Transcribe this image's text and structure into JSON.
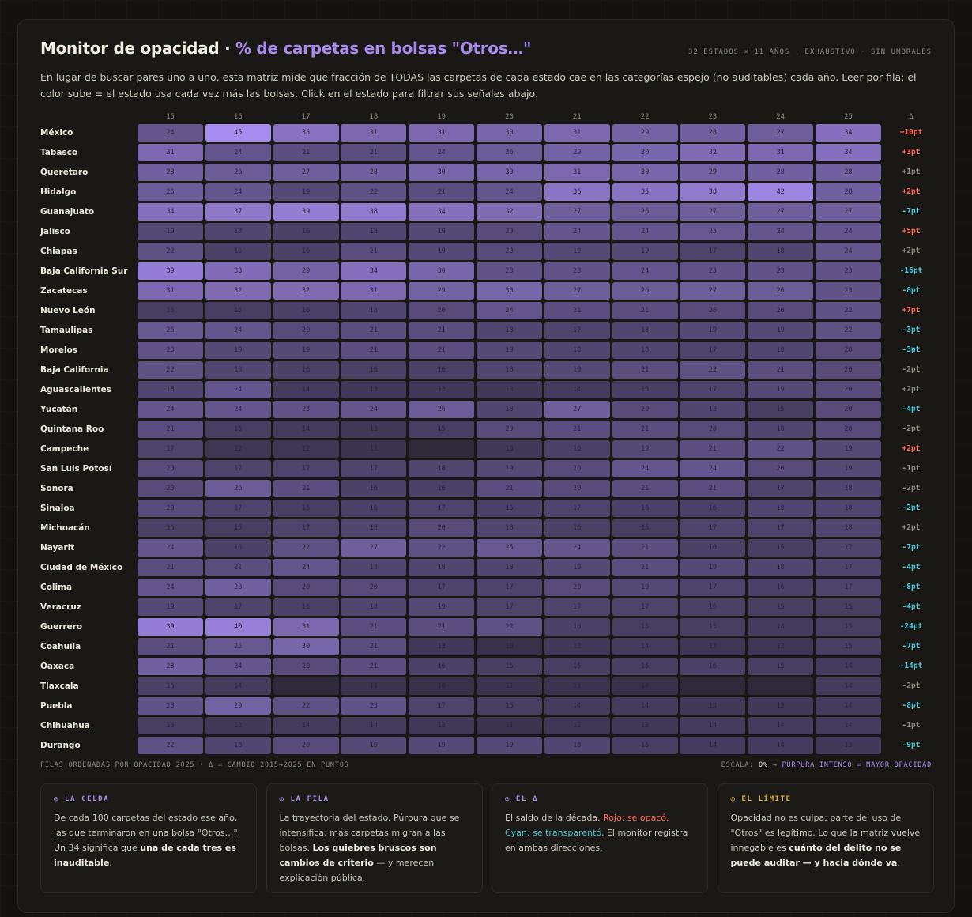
{
  "header": {
    "title_main": "Monitor de opacidad · ",
    "title_accent": "% de carpetas en bolsas \"Otros…\"",
    "meta": "32 ESTADOS × 11 AÑOS · EXHAUSTIVO · SIN UMBRALES",
    "intro": "En lugar de buscar pares uno a uno, esta matriz mide qué fracción de TODAS las carpetas de cada estado cae en las categorías espejo (no auditables) cada año. Leer por fila: el color sube = el estado usa cada vez más las bolsas. Click en el estado para filtrar sus señales abajo."
  },
  "years": [
    "15",
    "16",
    "17",
    "18",
    "19",
    "20",
    "21",
    "22",
    "23",
    "24",
    "25"
  ],
  "delta_label": "Δ",
  "colors": {
    "positive": "#ff6b5a",
    "negative": "#4ec9d8",
    "neutral": "#8f897d",
    "accent": "#a98bf0"
  },
  "rows": [
    {
      "state": "México",
      "values": [
        24,
        45,
        35,
        31,
        31,
        30,
        31,
        29,
        28,
        27,
        34
      ],
      "delta": "+10pt",
      "tone": "pos"
    },
    {
      "state": "Tabasco",
      "values": [
        31,
        24,
        21,
        21,
        24,
        26,
        29,
        30,
        32,
        31,
        34
      ],
      "delta": "+3pt",
      "tone": "pos"
    },
    {
      "state": "Querétaro",
      "values": [
        28,
        26,
        27,
        28,
        30,
        30,
        31,
        30,
        29,
        28,
        28
      ],
      "delta": "+1pt",
      "tone": "neu"
    },
    {
      "state": "Hidalgo",
      "values": [
        26,
        24,
        19,
        22,
        21,
        24,
        36,
        35,
        38,
        42,
        28
      ],
      "delta": "+2pt",
      "tone": "pos"
    },
    {
      "state": "Guanajuato",
      "values": [
        34,
        37,
        39,
        38,
        34,
        32,
        27,
        26,
        27,
        27,
        27
      ],
      "delta": "-7pt",
      "tone": "neg"
    },
    {
      "state": "Jalisco",
      "values": [
        19,
        18,
        16,
        18,
        19,
        20,
        24,
        24,
        25,
        24,
        24
      ],
      "delta": "+5pt",
      "tone": "pos"
    },
    {
      "state": "Chiapas",
      "values": [
        22,
        16,
        16,
        21,
        19,
        20,
        19,
        19,
        17,
        18,
        24
      ],
      "delta": "+2pt",
      "tone": "neu"
    },
    {
      "state": "Baja California Sur",
      "values": [
        39,
        33,
        29,
        34,
        30,
        23,
        23,
        24,
        23,
        23,
        23
      ],
      "delta": "-16pt",
      "tone": "neg"
    },
    {
      "state": "Zacatecas",
      "values": [
        31,
        32,
        32,
        31,
        29,
        30,
        27,
        26,
        27,
        26,
        23
      ],
      "delta": "-8pt",
      "tone": "neg"
    },
    {
      "state": "Nuevo León",
      "values": [
        15,
        15,
        16,
        18,
        20,
        24,
        21,
        21,
        20,
        20,
        22
      ],
      "delta": "+7pt",
      "tone": "pos"
    },
    {
      "state": "Tamaulipas",
      "values": [
        25,
        24,
        20,
        21,
        21,
        18,
        17,
        18,
        19,
        19,
        22
      ],
      "delta": "-3pt",
      "tone": "neg"
    },
    {
      "state": "Morelos",
      "values": [
        23,
        19,
        19,
        21,
        21,
        19,
        18,
        18,
        17,
        18,
        20
      ],
      "delta": "-3pt",
      "tone": "neg"
    },
    {
      "state": "Baja California",
      "values": [
        22,
        18,
        16,
        16,
        16,
        18,
        19,
        21,
        22,
        21,
        20
      ],
      "delta": "-2pt",
      "tone": "neu"
    },
    {
      "state": "Aguascalientes",
      "values": [
        18,
        24,
        14,
        13,
        13,
        13,
        14,
        15,
        17,
        19,
        20
      ],
      "delta": "+2pt",
      "tone": "neu"
    },
    {
      "state": "Yucatán",
      "values": [
        24,
        24,
        23,
        24,
        26,
        18,
        27,
        20,
        18,
        15,
        20
      ],
      "delta": "-4pt",
      "tone": "neg"
    },
    {
      "state": "Quintana Roo",
      "values": [
        21,
        15,
        14,
        13,
        15,
        20,
        21,
        21,
        20,
        18,
        20
      ],
      "delta": "-2pt",
      "tone": "neu"
    },
    {
      "state": "Campeche",
      "values": [
        17,
        12,
        12,
        11,
        null,
        13,
        16,
        19,
        21,
        22,
        19
      ],
      "delta": "+2pt",
      "tone": "pos"
    },
    {
      "state": "San Luis Potosí",
      "values": [
        20,
        17,
        17,
        17,
        18,
        19,
        20,
        24,
        24,
        20,
        19
      ],
      "delta": "-1pt",
      "tone": "neu"
    },
    {
      "state": "Sonora",
      "values": [
        20,
        26,
        21,
        16,
        16,
        21,
        20,
        21,
        21,
        17,
        18
      ],
      "delta": "-2pt",
      "tone": "neu"
    },
    {
      "state": "Sinaloa",
      "values": [
        20,
        17,
        15,
        16,
        17,
        16,
        17,
        16,
        16,
        18,
        18
      ],
      "delta": "-2pt",
      "tone": "neg"
    },
    {
      "state": "Michoacán",
      "values": [
        16,
        15,
        17,
        18,
        20,
        18,
        16,
        15,
        17,
        17,
        18
      ],
      "delta": "+2pt",
      "tone": "neu"
    },
    {
      "state": "Nayarit",
      "values": [
        24,
        16,
        22,
        27,
        22,
        25,
        24,
        21,
        16,
        15,
        17
      ],
      "delta": "-7pt",
      "tone": "neg"
    },
    {
      "state": "Ciudad de México",
      "values": [
        21,
        21,
        24,
        18,
        18,
        18,
        19,
        21,
        19,
        18,
        17
      ],
      "delta": "-4pt",
      "tone": "neg"
    },
    {
      "state": "Colima",
      "values": [
        24,
        28,
        20,
        20,
        17,
        17,
        20,
        19,
        17,
        16,
        17
      ],
      "delta": "-8pt",
      "tone": "neg"
    },
    {
      "state": "Veracruz",
      "values": [
        19,
        17,
        16,
        18,
        19,
        17,
        17,
        17,
        16,
        15,
        15
      ],
      "delta": "-4pt",
      "tone": "neg"
    },
    {
      "state": "Guerrero",
      "values": [
        39,
        40,
        31,
        21,
        21,
        22,
        16,
        15,
        15,
        14,
        15
      ],
      "delta": "-24pt",
      "tone": "neg"
    },
    {
      "state": "Coahuila",
      "values": [
        21,
        25,
        30,
        21,
        13,
        10,
        13,
        14,
        12,
        12,
        15
      ],
      "delta": "-7pt",
      "tone": "neg"
    },
    {
      "state": "Oaxaca",
      "values": [
        28,
        24,
        20,
        21,
        16,
        15,
        15,
        15,
        16,
        15,
        14
      ],
      "delta": "-14pt",
      "tone": "neg"
    },
    {
      "state": "Tlaxcala",
      "values": [
        16,
        14,
        null,
        11,
        10,
        11,
        11,
        10,
        null,
        null,
        14
      ],
      "delta": "-2pt",
      "tone": "neu"
    },
    {
      "state": "Puebla",
      "values": [
        23,
        29,
        22,
        23,
        17,
        15,
        14,
        14,
        13,
        13,
        14
      ],
      "delta": "-8pt",
      "tone": "neg"
    },
    {
      "state": "Chihuahua",
      "values": [
        15,
        13,
        14,
        14,
        13,
        11,
        12,
        13,
        14,
        14,
        14
      ],
      "delta": "-1pt",
      "tone": "neu"
    },
    {
      "state": "Durango",
      "values": [
        22,
        18,
        20,
        19,
        19,
        19,
        18,
        15,
        14,
        14,
        13
      ],
      "delta": "-9pt",
      "tone": "neg"
    }
  ],
  "footer": {
    "left": "FILAS ORDENADAS POR OPACIDAD 2025 · Δ = CAMBIO 2015→2025 EN PUNTOS",
    "right_a": "ESCALA: ",
    "right_b": "0%",
    "right_c": " → ",
    "right_d": "PÚRPURA INTENSO = MAYOR OPACIDAD"
  },
  "cards": [
    {
      "head": "◎ LA CELDA",
      "color": "#a98bf0",
      "body": [
        {
          "t": "De cada 100 carpetas del estado ese año, las que terminaron en una bolsa \"Otros…\". Un 34 significa que "
        },
        {
          "t": "una de cada tres es inauditable",
          "b": true
        },
        {
          "t": "."
        }
      ]
    },
    {
      "head": "◎ LA FILA",
      "color": "#a98bf0",
      "body": [
        {
          "t": "La trayectoria del estado. Púrpura que se intensifica: más carpetas migran a las bolsas. "
        },
        {
          "t": "Los quiebres bruscos son cambios de criterio",
          "b": true
        },
        {
          "t": " — y merecen explicación pública."
        }
      ]
    },
    {
      "head": "◎ EL Δ",
      "color": "#a98bf0",
      "body": [
        {
          "t": "El saldo de la década. "
        },
        {
          "t": "Rojo: se opacó.",
          "c": "red"
        },
        {
          "t": " "
        },
        {
          "t": "Cyan: se transparentó.",
          "c": "cyan"
        },
        {
          "t": " El monitor registra en ambas direcciones."
        }
      ]
    },
    {
      "head": "◎ EL LÍMITE",
      "color": "#e3b341",
      "body": [
        {
          "t": "Opacidad no es culpa: parte del uso de \"Otros\" es legítimo. Lo que la matriz vuelve innegable es "
        },
        {
          "t": "cuánto del delito no se puede auditar — y hacia dónde va",
          "b": true
        },
        {
          "t": "."
        }
      ]
    }
  ]
}
